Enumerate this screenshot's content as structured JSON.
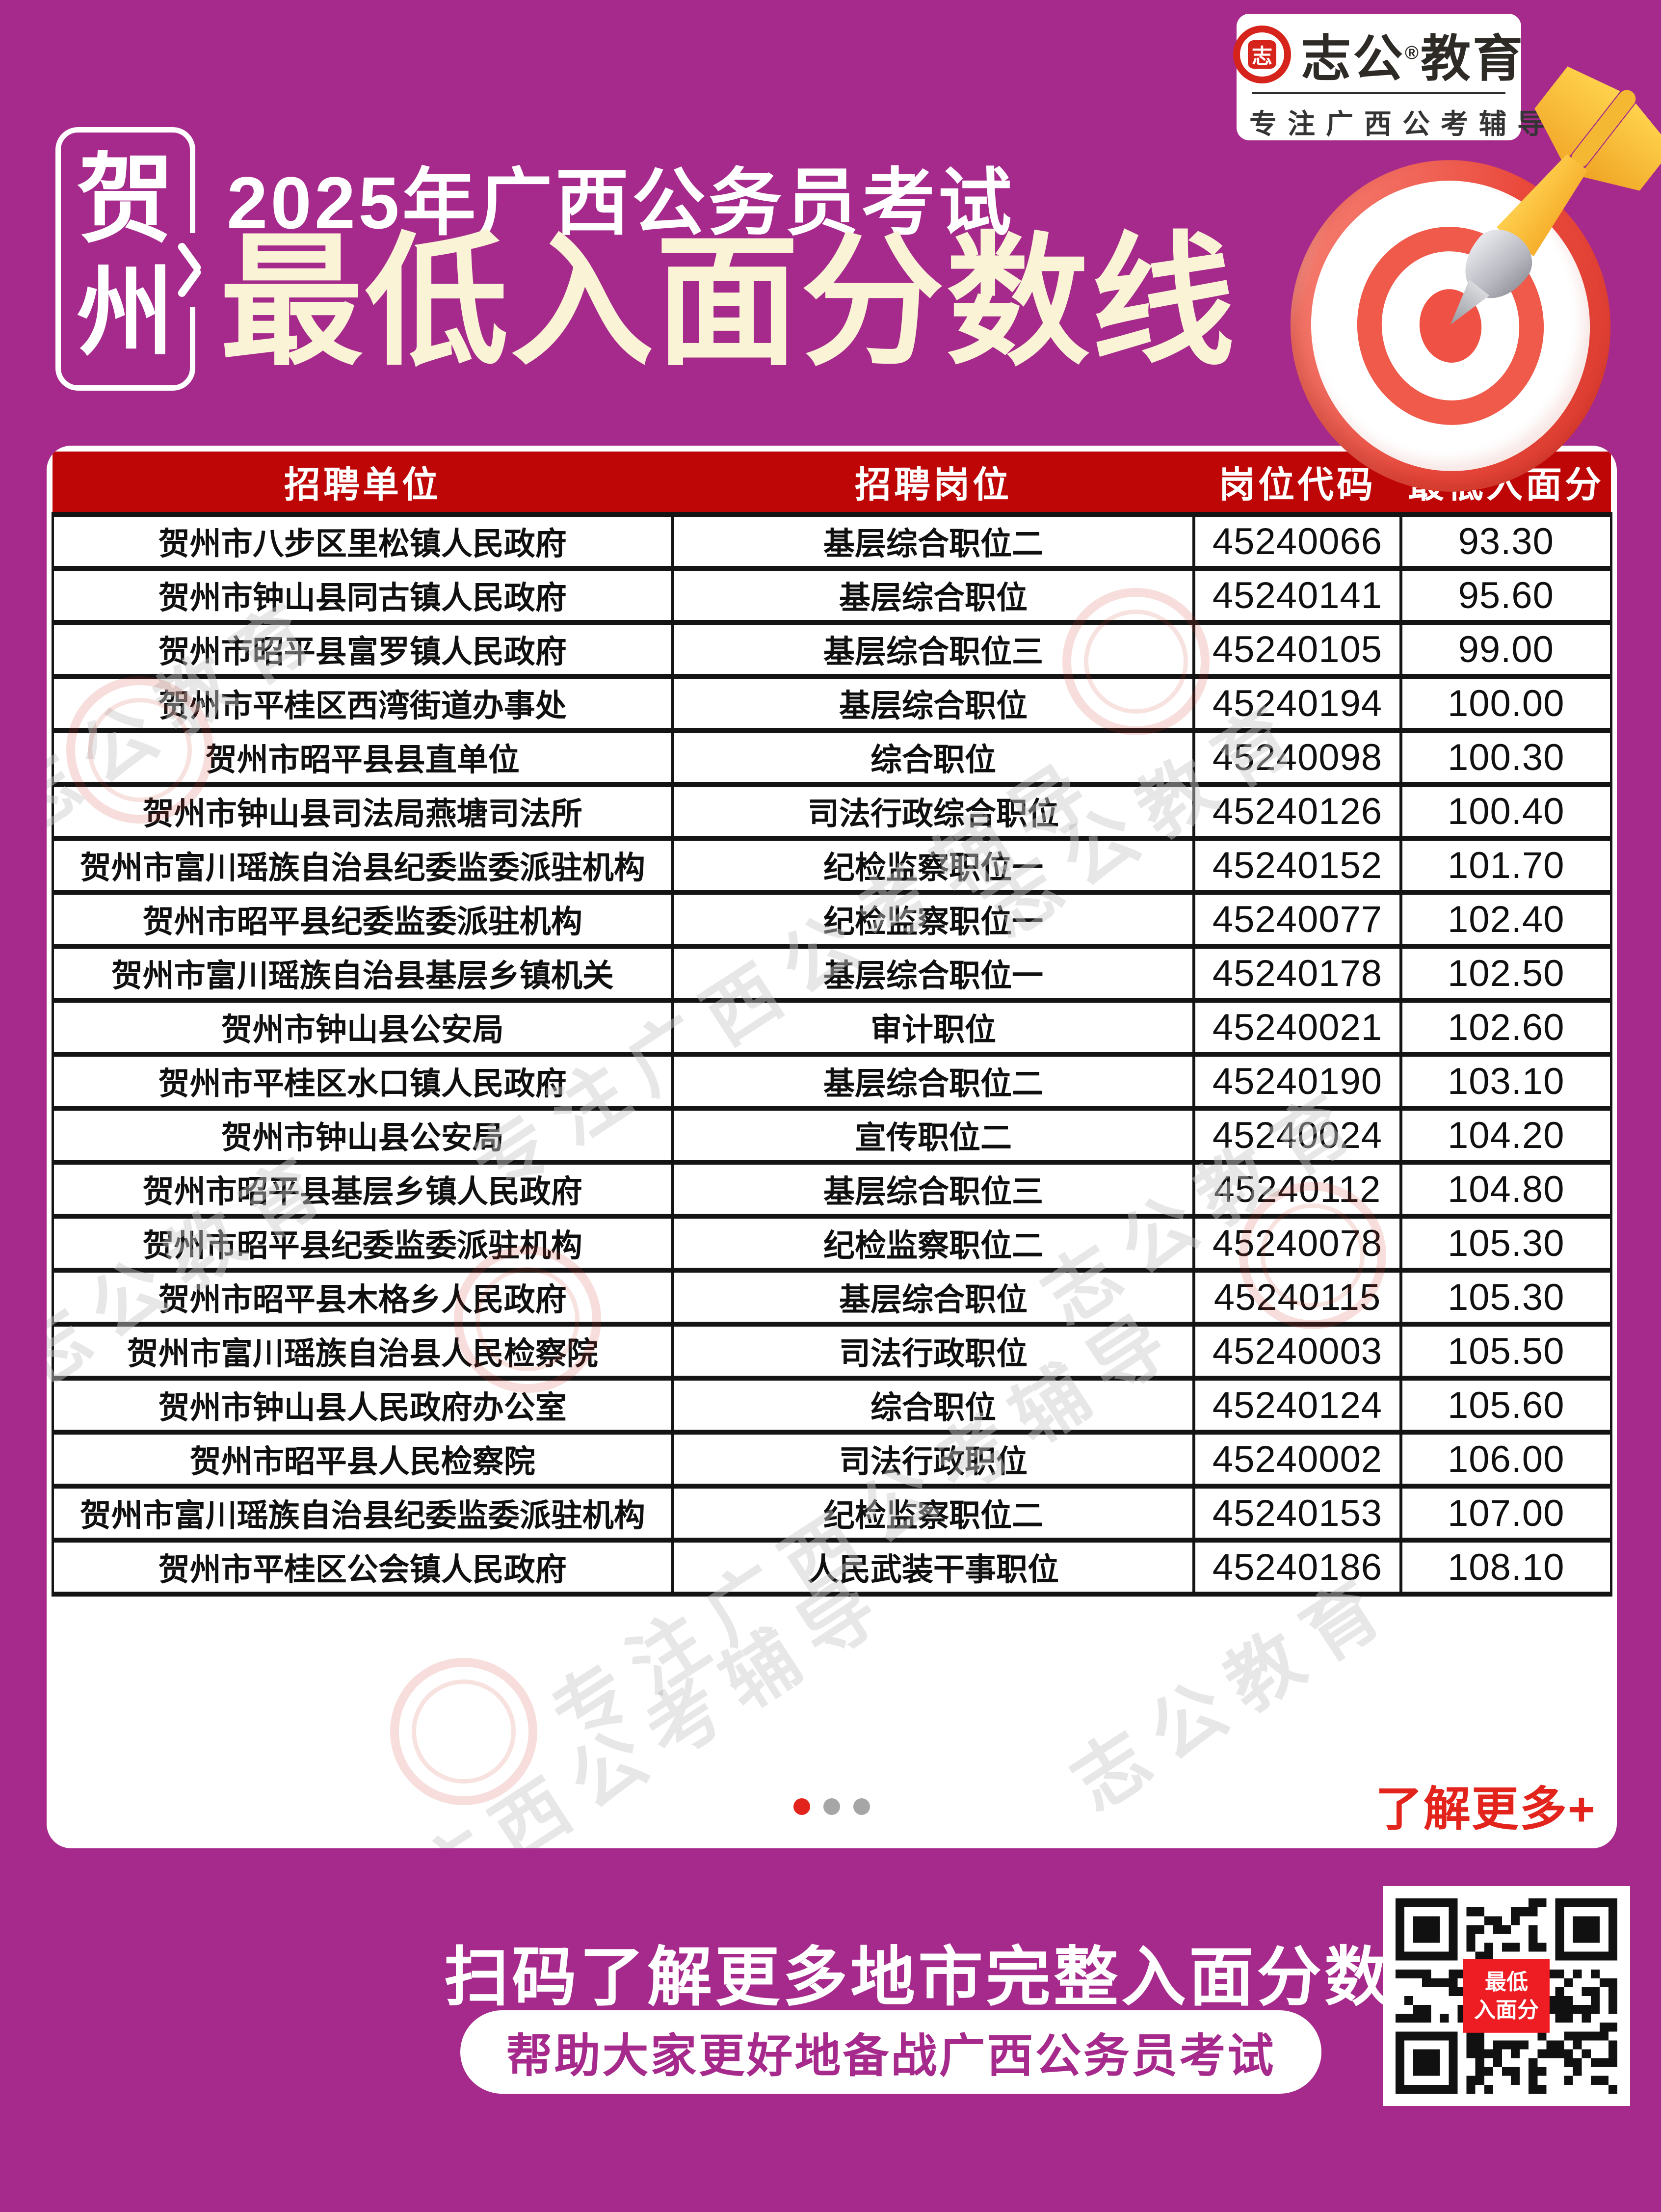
{
  "colors": {
    "background": "#A62A8C",
    "table_header_red": "#BE0607",
    "accent_red": "#E3241D",
    "title_cream": "#FBF3D6",
    "brand_red": "#D6231C",
    "qr_label_red": "#EE1C23"
  },
  "brand": {
    "logo_char": "志",
    "name_left": "志公",
    "reg_mark": "®",
    "name_right": "教育",
    "tagline": "专注广西公考辅导"
  },
  "header": {
    "city_char1": "贺",
    "city_char2": "州",
    "title_top": "2025年广西公务员考试",
    "title_main": "最低入面分数线"
  },
  "table": {
    "columns": [
      "招聘单位",
      "招聘岗位",
      "岗位代码",
      "最低入面分"
    ],
    "rows": [
      [
        "贺州市八步区里松镇人民政府",
        "基层综合职位二",
        "45240066",
        "93.30"
      ],
      [
        "贺州市钟山县同古镇人民政府",
        "基层综合职位",
        "45240141",
        "95.60"
      ],
      [
        "贺州市昭平县富罗镇人民政府",
        "基层综合职位三",
        "45240105",
        "99.00"
      ],
      [
        "贺州市平桂区西湾街道办事处",
        "基层综合职位",
        "45240194",
        "100.00"
      ],
      [
        "贺州市昭平县县直单位",
        "综合职位",
        "45240098",
        "100.30"
      ],
      [
        "贺州市钟山县司法局燕塘司法所",
        "司法行政综合职位",
        "45240126",
        "100.40"
      ],
      [
        "贺州市富川瑶族自治县纪委监委派驻机构",
        "纪检监察职位一",
        "45240152",
        "101.70"
      ],
      [
        "贺州市昭平县纪委监委派驻机构",
        "纪检监察职位一",
        "45240077",
        "102.40"
      ],
      [
        "贺州市富川瑶族自治县基层乡镇机关",
        "基层综合职位一",
        "45240178",
        "102.50"
      ],
      [
        "贺州市钟山县公安局",
        "审计职位",
        "45240021",
        "102.60"
      ],
      [
        "贺州市平桂区水口镇人民政府",
        "基层综合职位二",
        "45240190",
        "103.10"
      ],
      [
        "贺州市钟山县公安局",
        "宣传职位二",
        "45240024",
        "104.20"
      ],
      [
        "贺州市昭平县基层乡镇人民政府",
        "基层综合职位三",
        "45240112",
        "104.80"
      ],
      [
        "贺州市昭平县纪委监委派驻机构",
        "纪检监察职位二",
        "45240078",
        "105.30"
      ],
      [
        "贺州市昭平县木格乡人民政府",
        "基层综合职位",
        "45240115",
        "105.30"
      ],
      [
        "贺州市富川瑶族自治县人民检察院",
        "司法行政职位",
        "45240003",
        "105.50"
      ],
      [
        "贺州市钟山县人民政府办公室",
        "综合职位",
        "45240124",
        "105.60"
      ],
      [
        "贺州市昭平县人民检察院",
        "司法行政职位",
        "45240002",
        "106.00"
      ],
      [
        "贺州市富川瑶族自治县纪委监委派驻机构",
        "纪检监察职位二",
        "45240153",
        "107.00"
      ],
      [
        "贺州市平桂区公会镇人民政府",
        "人民武装干事职位",
        "45240186",
        "108.10"
      ]
    ]
  },
  "pagination": {
    "more_label": "了解更多+"
  },
  "footer": {
    "headline": "扫码了解更多地市完整入面分数",
    "subline": "帮助大家更好地备战广西公务员考试",
    "qr_label_top": "最低",
    "qr_label_bottom": "入面分"
  },
  "watermark": {
    "text": "志公教育",
    "tagline": "专注广西公考辅导"
  }
}
